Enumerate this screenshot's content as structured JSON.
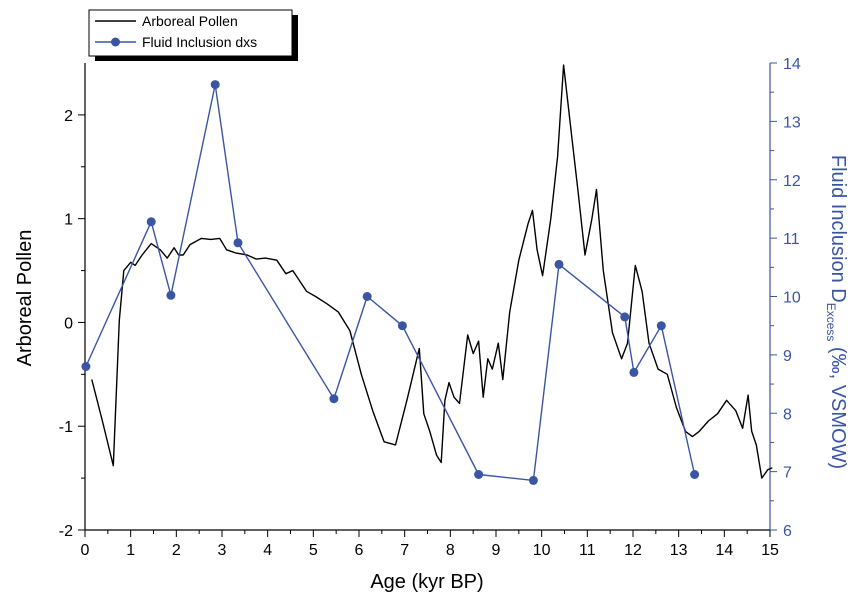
{
  "chart_data": {
    "type": "line",
    "xlabel": "Age (kyr BP)",
    "ylabel_left": "Arboreal Pollen",
    "ylabel_right": {
      "prefix": "Fluid Inclusion D",
      "subscript": "Excess",
      "suffix": " (‰, VSMOW)"
    },
    "xlim": [
      0,
      15
    ],
    "ylim_left": [
      -2,
      2.5
    ],
    "ylim_right": [
      6,
      14
    ],
    "x_ticks": [
      0,
      1,
      2,
      3,
      4,
      5,
      6,
      7,
      8,
      9,
      10,
      11,
      12,
      13,
      14,
      15
    ],
    "y_left_ticks": [
      -2,
      -1,
      0,
      1,
      2
    ],
    "y_right_ticks": [
      6,
      7,
      8,
      9,
      10,
      11,
      12,
      13,
      14
    ],
    "legend_placement": "top-left",
    "grid": false,
    "series": [
      {
        "name": "Arboreal Pollen",
        "axis": "left",
        "color": "#000000",
        "marker": "none",
        "x": [
          0.15,
          0.38,
          0.62,
          0.75,
          0.85,
          1.0,
          1.1,
          1.25,
          1.45,
          1.65,
          1.8,
          1.95,
          2.05,
          2.15,
          2.3,
          2.55,
          2.75,
          2.95,
          3.1,
          3.3,
          3.55,
          3.75,
          3.95,
          4.2,
          4.4,
          4.55,
          4.7,
          4.85,
          5.05,
          5.3,
          5.55,
          5.8,
          6.05,
          6.3,
          6.55,
          6.8,
          7.05,
          7.32,
          7.42,
          7.55,
          7.7,
          7.8,
          7.88,
          7.97,
          8.08,
          8.2,
          8.38,
          8.5,
          8.62,
          8.72,
          8.82,
          8.92,
          9.05,
          9.15,
          9.3,
          9.5,
          9.7,
          9.8,
          9.9,
          10.02,
          10.2,
          10.35,
          10.48,
          10.65,
          10.8,
          10.95,
          11.1,
          11.2,
          11.35,
          11.55,
          11.75,
          11.88,
          12.05,
          12.2,
          12.35,
          12.55,
          12.75,
          12.95,
          13.15,
          13.3,
          13.45,
          13.65,
          13.85,
          14.05,
          14.25,
          14.4,
          14.52,
          14.6,
          14.7,
          14.82,
          14.95,
          15.05
        ],
        "y": [
          -0.55,
          -0.95,
          -1.38,
          0.02,
          0.5,
          0.58,
          0.55,
          0.65,
          0.76,
          0.7,
          0.62,
          0.72,
          0.65,
          0.65,
          0.75,
          0.81,
          0.8,
          0.81,
          0.7,
          0.67,
          0.65,
          0.61,
          0.62,
          0.6,
          0.47,
          0.5,
          0.4,
          0.3,
          0.25,
          0.18,
          0.1,
          -0.08,
          -0.5,
          -0.85,
          -1.15,
          -1.18,
          -0.75,
          -0.25,
          -0.88,
          -1.05,
          -1.28,
          -1.35,
          -0.75,
          -0.58,
          -0.72,
          -0.78,
          -0.12,
          -0.3,
          -0.18,
          -0.72,
          -0.35,
          -0.45,
          -0.2,
          -0.55,
          0.1,
          0.6,
          0.95,
          1.08,
          0.7,
          0.45,
          1.0,
          1.6,
          2.48,
          1.82,
          1.25,
          0.65,
          1.0,
          1.28,
          0.5,
          -0.1,
          -0.35,
          -0.2,
          0.55,
          0.3,
          -0.2,
          -0.45,
          -0.5,
          -0.82,
          -1.05,
          -1.1,
          -1.05,
          -0.95,
          -0.88,
          -0.75,
          -0.85,
          -1.02,
          -0.7,
          -1.05,
          -1.18,
          -1.5,
          -1.42,
          -1.4
        ]
      },
      {
        "name": "Fluid Inclusion dxs",
        "axis": "right",
        "color": "#3a55a4",
        "marker": "circle",
        "x": [
          0.02,
          1.45,
          1.88,
          2.85,
          3.35,
          5.45,
          6.18,
          6.95,
          8.62,
          9.82,
          10.38,
          11.82,
          12.02,
          12.62,
          13.35
        ],
        "y": [
          8.8,
          11.28,
          10.02,
          13.63,
          10.92,
          8.25,
          10.0,
          9.5,
          6.95,
          6.85,
          10.55,
          9.65,
          8.7,
          9.5,
          6.95
        ]
      }
    ]
  }
}
